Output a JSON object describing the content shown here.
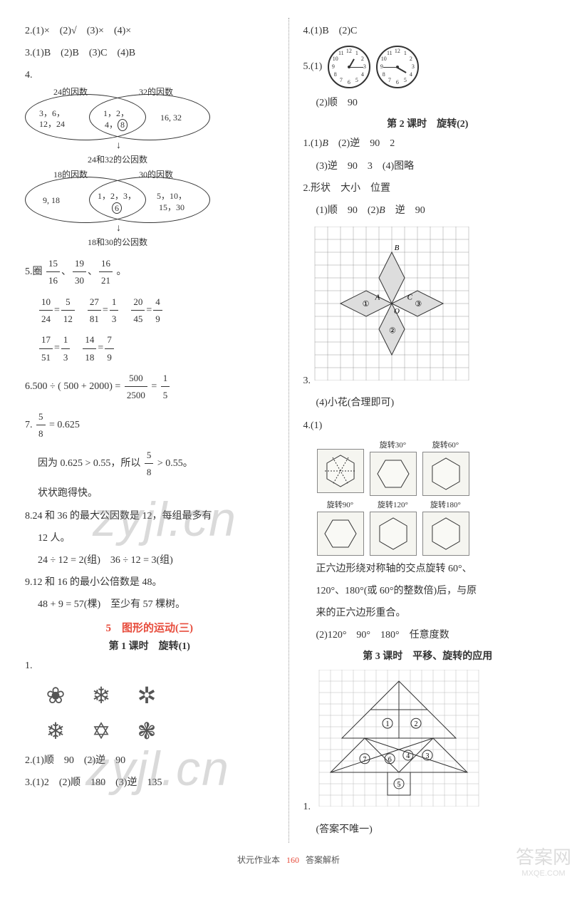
{
  "left": {
    "q2": "2.(1)×　(2)√　(3)×　(4)×",
    "q3": "3.(1)B　(2)B　(3)C　(4)B",
    "q4_label": "4.",
    "venn1": {
      "label_l": "24的因数",
      "label_r": "32的因数",
      "left_text": "3, 6,\n12, 24",
      "mid_text": "1, 2,\n4, ⑧",
      "right_text": "16, 32",
      "caption": "24和32的公因数"
    },
    "venn2": {
      "label_l": "18的因数",
      "label_r": "30的因数",
      "left_text": "9, 18",
      "mid_text": "1, 2, 3,\n⑥",
      "right_text": "5, 10,\n15, 30",
      "caption": "18和30的公因数"
    },
    "q5_prefix": "5.圈",
    "q5_fracs": [
      {
        "n": "15",
        "d": "16"
      },
      {
        "n": "19",
        "d": "30"
      },
      {
        "n": "16",
        "d": "21"
      }
    ],
    "q5_suffix": "。",
    "q5_line2": [
      {
        "n": "10",
        "d": "24"
      },
      {
        "eq": "="
      },
      {
        "n": "5",
        "d": "12"
      },
      {
        "sp": "　"
      },
      {
        "n": "27",
        "d": "81"
      },
      {
        "eq": "="
      },
      {
        "n": "1",
        "d": "3"
      },
      {
        "sp": "　"
      },
      {
        "n": "20",
        "d": "45"
      },
      {
        "eq": "="
      },
      {
        "n": "4",
        "d": "9"
      }
    ],
    "q5_line3": [
      {
        "n": "17",
        "d": "51"
      },
      {
        "eq": "="
      },
      {
        "n": "1",
        "d": "3"
      },
      {
        "sp": "　"
      },
      {
        "n": "14",
        "d": "18"
      },
      {
        "eq": "="
      },
      {
        "n": "7",
        "d": "9"
      }
    ],
    "q6_prefix": "6.500 ÷ ( 500 + 2000) = ",
    "q6_f1": {
      "n": "500",
      "d": "2500"
    },
    "q6_eq": " = ",
    "q6_f2": {
      "n": "1",
      "d": "5"
    },
    "q7_prefix": "7.",
    "q7_frac": {
      "n": "5",
      "d": "8"
    },
    "q7_suffix": " = 0.625",
    "q7_line2a": "因为 0.625 > 0.55，所以",
    "q7_line2_frac": {
      "n": "5",
      "d": "8"
    },
    "q7_line2b": " > 0.55。",
    "q7_line3": "状状跑得快。",
    "q8_l1": "8.24 和 36 的最大公因数是 12，每组最多有",
    "q8_l2": "12 人。",
    "q8_l3": "24 ÷ 12 = 2(组)　36 ÷ 12 = 3(组)",
    "q9_l1": "9.12 和 16 的最小公倍数是 48。",
    "q9_l2": "48 + 9 = 57(棵)　至少有 57 棵树。",
    "section5": "5　图形的运动(三)",
    "lesson1": "第 1 课时　旋转(1)",
    "q1_label": "1.",
    "flowers": [
      "❀",
      "❄",
      "✲",
      "❄",
      "✡",
      "❃"
    ],
    "l2": "2.(1)顺　90　(2)逆　90",
    "l3": "3.(1)2　(2)顺　180　(3)逆　135"
  },
  "right": {
    "q4": "4.(1)B　(2)C",
    "q5_label": "5.(1)",
    "clocks": [
      {
        "hour_angle": -60,
        "min_angle": 0
      },
      {
        "hour_angle": 30,
        "min_angle": 180
      }
    ],
    "q5_2": "(2)顺　90",
    "lesson2": "第 2 课时　旋转(2)",
    "r1_l1_a": "1.(1)",
    "r1_l1_b": "B",
    "r1_l1_c": "　(2)逆　90　2",
    "r1_l2": "(3)逆　90　3　(4)图略",
    "r2_l1": "2.形状　大小　位置",
    "r2_l2_a": "(1)顺　90　(2)",
    "r2_l2_b": "B",
    "r2_l2_c": "　逆　90",
    "r3_label": "3.",
    "r3_grid": {
      "size": 12,
      "cell": 18,
      "labels": {
        "A": "A",
        "B": "B",
        "C": "C",
        "O": "O",
        "n1": "①",
        "n2": "②",
        "n3": "③"
      }
    },
    "r3_caption": "(4)小花(合理即可)",
    "r4_label": "4.(1)",
    "hex_labels_row1": [
      "",
      "旋转30°",
      "旋转60°"
    ],
    "hex_labels_row2": [
      "旋转90°",
      "旋转120°",
      "旋转180°"
    ],
    "r4_text1": "正六边形绕对称轴的交点旋转 60°、",
    "r4_text2": "120°、180°(或 60°的整数倍)后，与原",
    "r4_text3": "来的正六边形重合。",
    "r4_2": "(2)120°　90°　180°　任意度数",
    "lesson3": "第 3 课时　平移、旋转的应用",
    "rq1_label": "1.",
    "rq1_grid": {
      "size": 14,
      "cell": 16
    },
    "rq1_caption": "(答案不唯一)"
  },
  "footer": {
    "a": "状元作业本",
    "page": "160",
    "b": "答案解析"
  },
  "watermark": "zyjl.cn",
  "corner": {
    "top": "答案网",
    "bot": "MXQE.COM"
  }
}
